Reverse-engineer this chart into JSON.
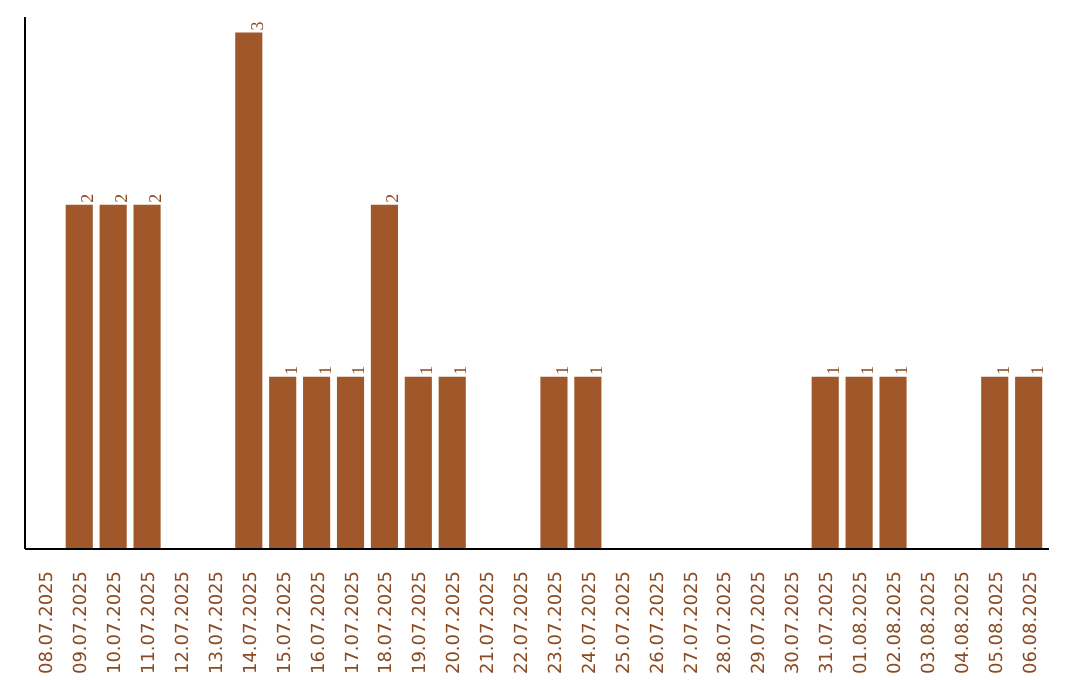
{
  "chart_data": {
    "type": "bar",
    "categories": [
      "08.07.2025",
      "09.07.2025",
      "10.07.2025",
      "11.07.2025",
      "12.07.2025",
      "13.07.2025",
      "14.07.2025",
      "15.07.2025",
      "16.07.2025",
      "17.07.2025",
      "18.07.2025",
      "19.07.2025",
      "20.07.2025",
      "21.07.2025",
      "22.07.2025",
      "23.07.2025",
      "24.07.2025",
      "25.07.2025",
      "26.07.2025",
      "27.07.2025",
      "28.07.2025",
      "29.07.2025",
      "30.07.2025",
      "31.07.2025",
      "01.08.2025",
      "02.08.2025",
      "03.08.2025",
      "04.08.2025",
      "05.08.2025",
      "06.08.2025"
    ],
    "values": [
      0,
      2,
      2,
      2,
      0,
      0,
      3,
      1,
      1,
      1,
      2,
      1,
      1,
      0,
      0,
      1,
      1,
      0,
      0,
      0,
      0,
      0,
      0,
      1,
      1,
      1,
      0,
      0,
      1,
      1
    ],
    "value_labels": [
      null,
      "2",
      "2",
      "2",
      null,
      null,
      "3",
      "1",
      "1",
      "1",
      "2",
      "1",
      "1",
      null,
      null,
      "1",
      "1",
      null,
      null,
      null,
      null,
      null,
      null,
      "1",
      "1",
      "1",
      null,
      null,
      "1",
      "1"
    ],
    "color": "#a0572a"
  }
}
